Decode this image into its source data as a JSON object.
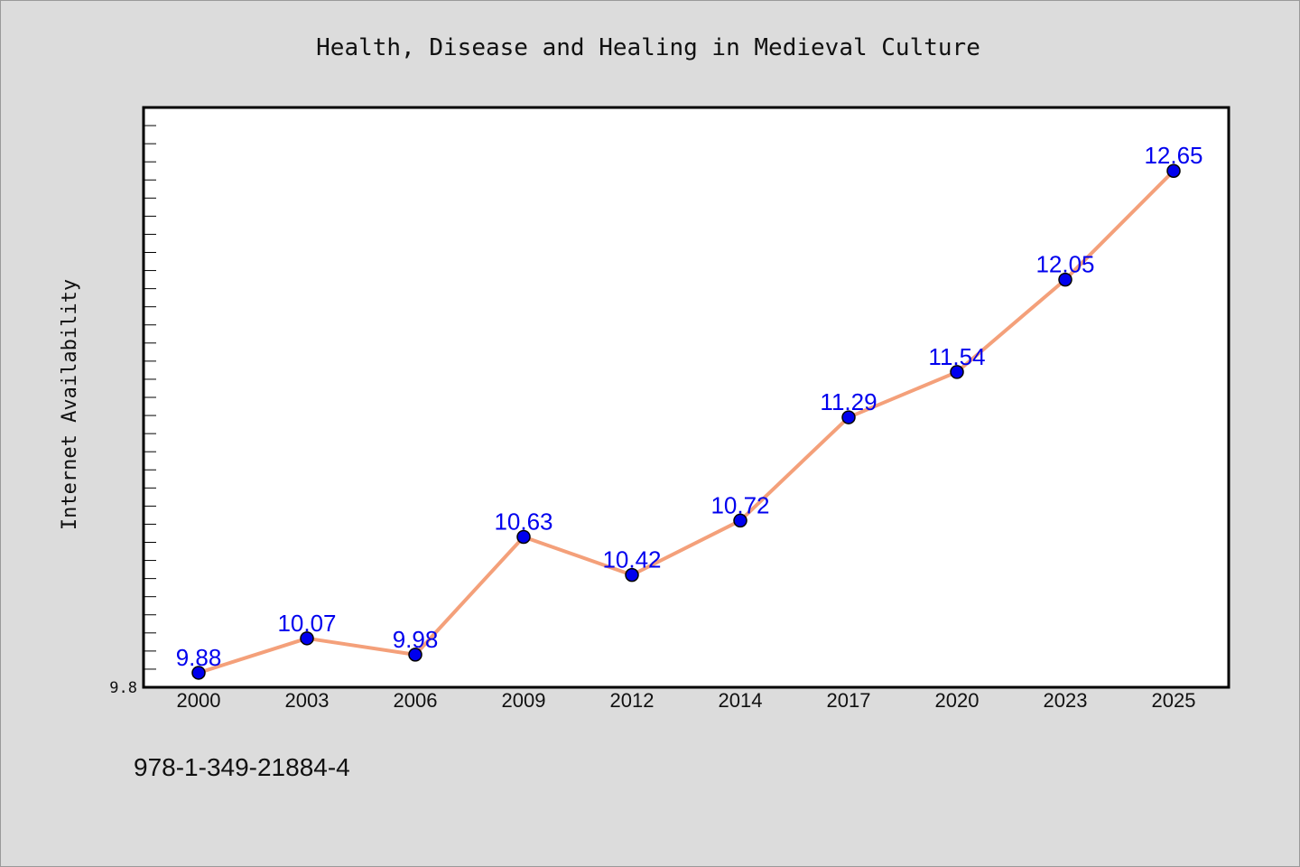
{
  "chart_data": {
    "type": "line",
    "title": "Health, Disease and Healing in Medieval Culture",
    "xlabel": "",
    "ylabel": "Internet Availability",
    "categories": [
      "2000",
      "2003",
      "2006",
      "2009",
      "2012",
      "2014",
      "2017",
      "2020",
      "2023",
      "2025"
    ],
    "series": [
      {
        "values": [
          9.88,
          10.07,
          9.98,
          10.63,
          10.42,
          10.72,
          11.29,
          11.54,
          12.05,
          12.65
        ],
        "line_color": "#f4a07a",
        "marker_color": "#0000ee",
        "label_color": "#0000ee"
      }
    ],
    "data_labels": [
      "9.88",
      "10.07",
      "9.98",
      "10.63",
      "10.42",
      "10.72",
      "11.29",
      "11.54",
      "12.05",
      "12.65"
    ],
    "y_tick_labels": [
      "9.8"
    ],
    "ylim": [
      9.8,
      13.0
    ],
    "grid": false,
    "legend": "none"
  },
  "footer": {
    "code": "978-1-349-21884-4"
  },
  "colors": {
    "background": "#dcdcdc",
    "plot_background": "#ffffff",
    "axis": "#000000"
  }
}
